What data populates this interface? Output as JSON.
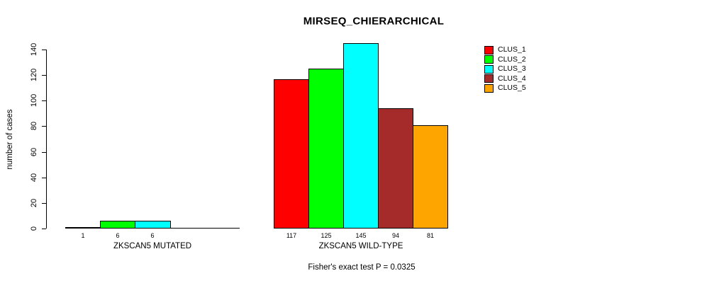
{
  "title": "MIRSEQ_CHIERARCHICAL",
  "y_axis": {
    "label": "number of cases",
    "ticks": [
      0,
      20,
      40,
      60,
      80,
      100,
      120,
      140
    ],
    "max": 140
  },
  "footer": "Fisher's exact test P = 0.0325",
  "legend": {
    "items": [
      {
        "label": "CLUS_1",
        "color": "#FF0000"
      },
      {
        "label": "CLUS_2",
        "color": "#00FF00"
      },
      {
        "label": "CLUS_3",
        "color": "#00FFFF"
      },
      {
        "label": "CLUS_4",
        "color": "#A52A2A"
      },
      {
        "label": "CLUS_5",
        "color": "#FFA500"
      }
    ]
  },
  "chart_data": {
    "type": "bar",
    "title": "MIRSEQ_CHIERARCHICAL",
    "ylabel": "number of cases",
    "ylim": [
      0,
      140
    ],
    "yticks": [
      0,
      20,
      40,
      60,
      80,
      100,
      120,
      140
    ],
    "grid": false,
    "legend_position": "top-right",
    "series_names": [
      "CLUS_1",
      "CLUS_2",
      "CLUS_3",
      "CLUS_4",
      "CLUS_5"
    ],
    "series_colors": [
      "#FF0000",
      "#00FF00",
      "#00FFFF",
      "#A52A2A",
      "#FFA500"
    ],
    "groups": [
      {
        "label": "ZKSCAN5 MUTATED",
        "values": [
          1,
          6,
          6,
          0,
          0
        ],
        "bar_labels": [
          "1",
          "6",
          "6",
          "",
          ""
        ]
      },
      {
        "label": "ZKSCAN5 WILD-TYPE",
        "values": [
          117,
          125,
          145,
          94,
          81
        ],
        "bar_labels": [
          "117",
          "125",
          "145",
          "94",
          "81"
        ]
      }
    ],
    "annotation": "Fisher's exact test P = 0.0325"
  }
}
